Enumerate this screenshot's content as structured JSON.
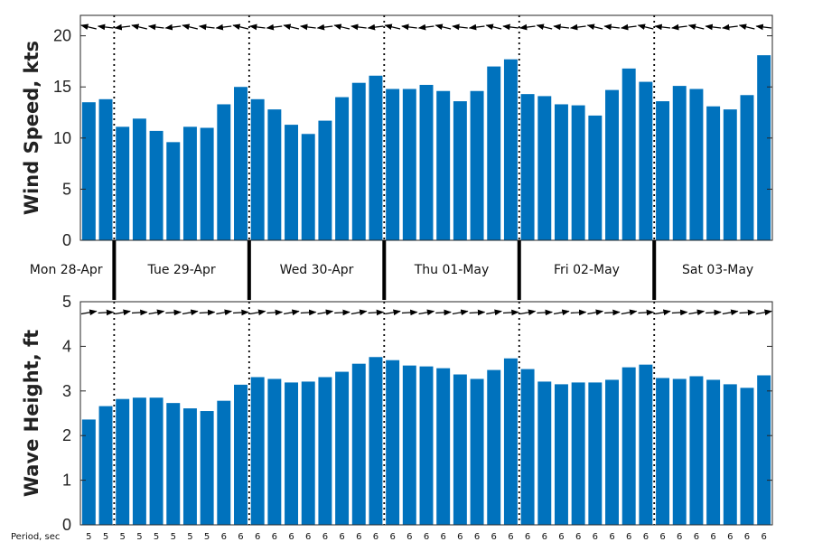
{
  "chart_data": [
    {
      "type": "bar",
      "ylabel": "Wind Speed, kts",
      "ylim": [
        0,
        22
      ],
      "yticks": [
        0,
        5,
        10,
        15,
        20
      ],
      "bar_color": "#0072BD",
      "values": [
        13.5,
        13.8,
        11.1,
        11.9,
        10.7,
        9.6,
        11.1,
        11.0,
        13.3,
        15.0,
        13.8,
        12.8,
        11.3,
        10.4,
        11.7,
        14.0,
        15.4,
        16.1,
        14.8,
        14.8,
        15.2,
        14.6,
        13.6,
        14.6,
        17.0,
        17.7,
        14.3,
        14.1,
        13.3,
        13.2,
        12.2,
        14.7,
        16.8,
        15.5,
        13.6,
        15.1,
        14.8,
        13.1,
        12.8,
        14.2,
        18.1
      ],
      "direction_arrows": "pointing left (westward), slightly tilted",
      "grid": false
    },
    {
      "type": "bar",
      "ylabel": "Wave Height, ft",
      "ylim": [
        0,
        5
      ],
      "yticks": [
        0,
        1,
        2,
        3,
        4,
        5
      ],
      "bar_color": "#0072BD",
      "values": [
        2.36,
        2.66,
        2.82,
        2.85,
        2.85,
        2.73,
        2.61,
        2.55,
        2.78,
        3.14,
        3.31,
        3.27,
        3.19,
        3.21,
        3.31,
        3.43,
        3.61,
        3.76,
        3.69,
        3.57,
        3.55,
        3.51,
        3.37,
        3.27,
        3.47,
        3.73,
        3.49,
        3.21,
        3.15,
        3.19,
        3.19,
        3.25,
        3.53,
        3.59,
        3.29,
        3.27,
        3.33,
        3.25,
        3.15,
        3.07,
        3.35
      ],
      "period_label": "Period, sec",
      "periods": [
        "5",
        "5",
        "5",
        "5",
        "5",
        "5",
        "5",
        "5",
        "6",
        "6",
        "6",
        "6",
        "6",
        "6",
        "6",
        "6",
        "6",
        "6",
        "6",
        "6",
        "6",
        "6",
        "6",
        "6",
        "6",
        "6",
        "6",
        "6",
        "6",
        "6",
        "6",
        "6",
        "6",
        "6",
        "6",
        "6",
        "6",
        "6",
        "6",
        "6",
        "6"
      ],
      "direction_arrows": "pointing right (eastward)",
      "grid": false
    }
  ],
  "days": [
    "Mon 28-Apr",
    "Tue 29-Apr",
    "Wed 30-Apr",
    "Thu 01-May",
    "Fri 02-May",
    "Sat 03-May"
  ],
  "day_boundaries_after_bar_index": [
    1,
    9,
    17,
    25,
    33
  ]
}
